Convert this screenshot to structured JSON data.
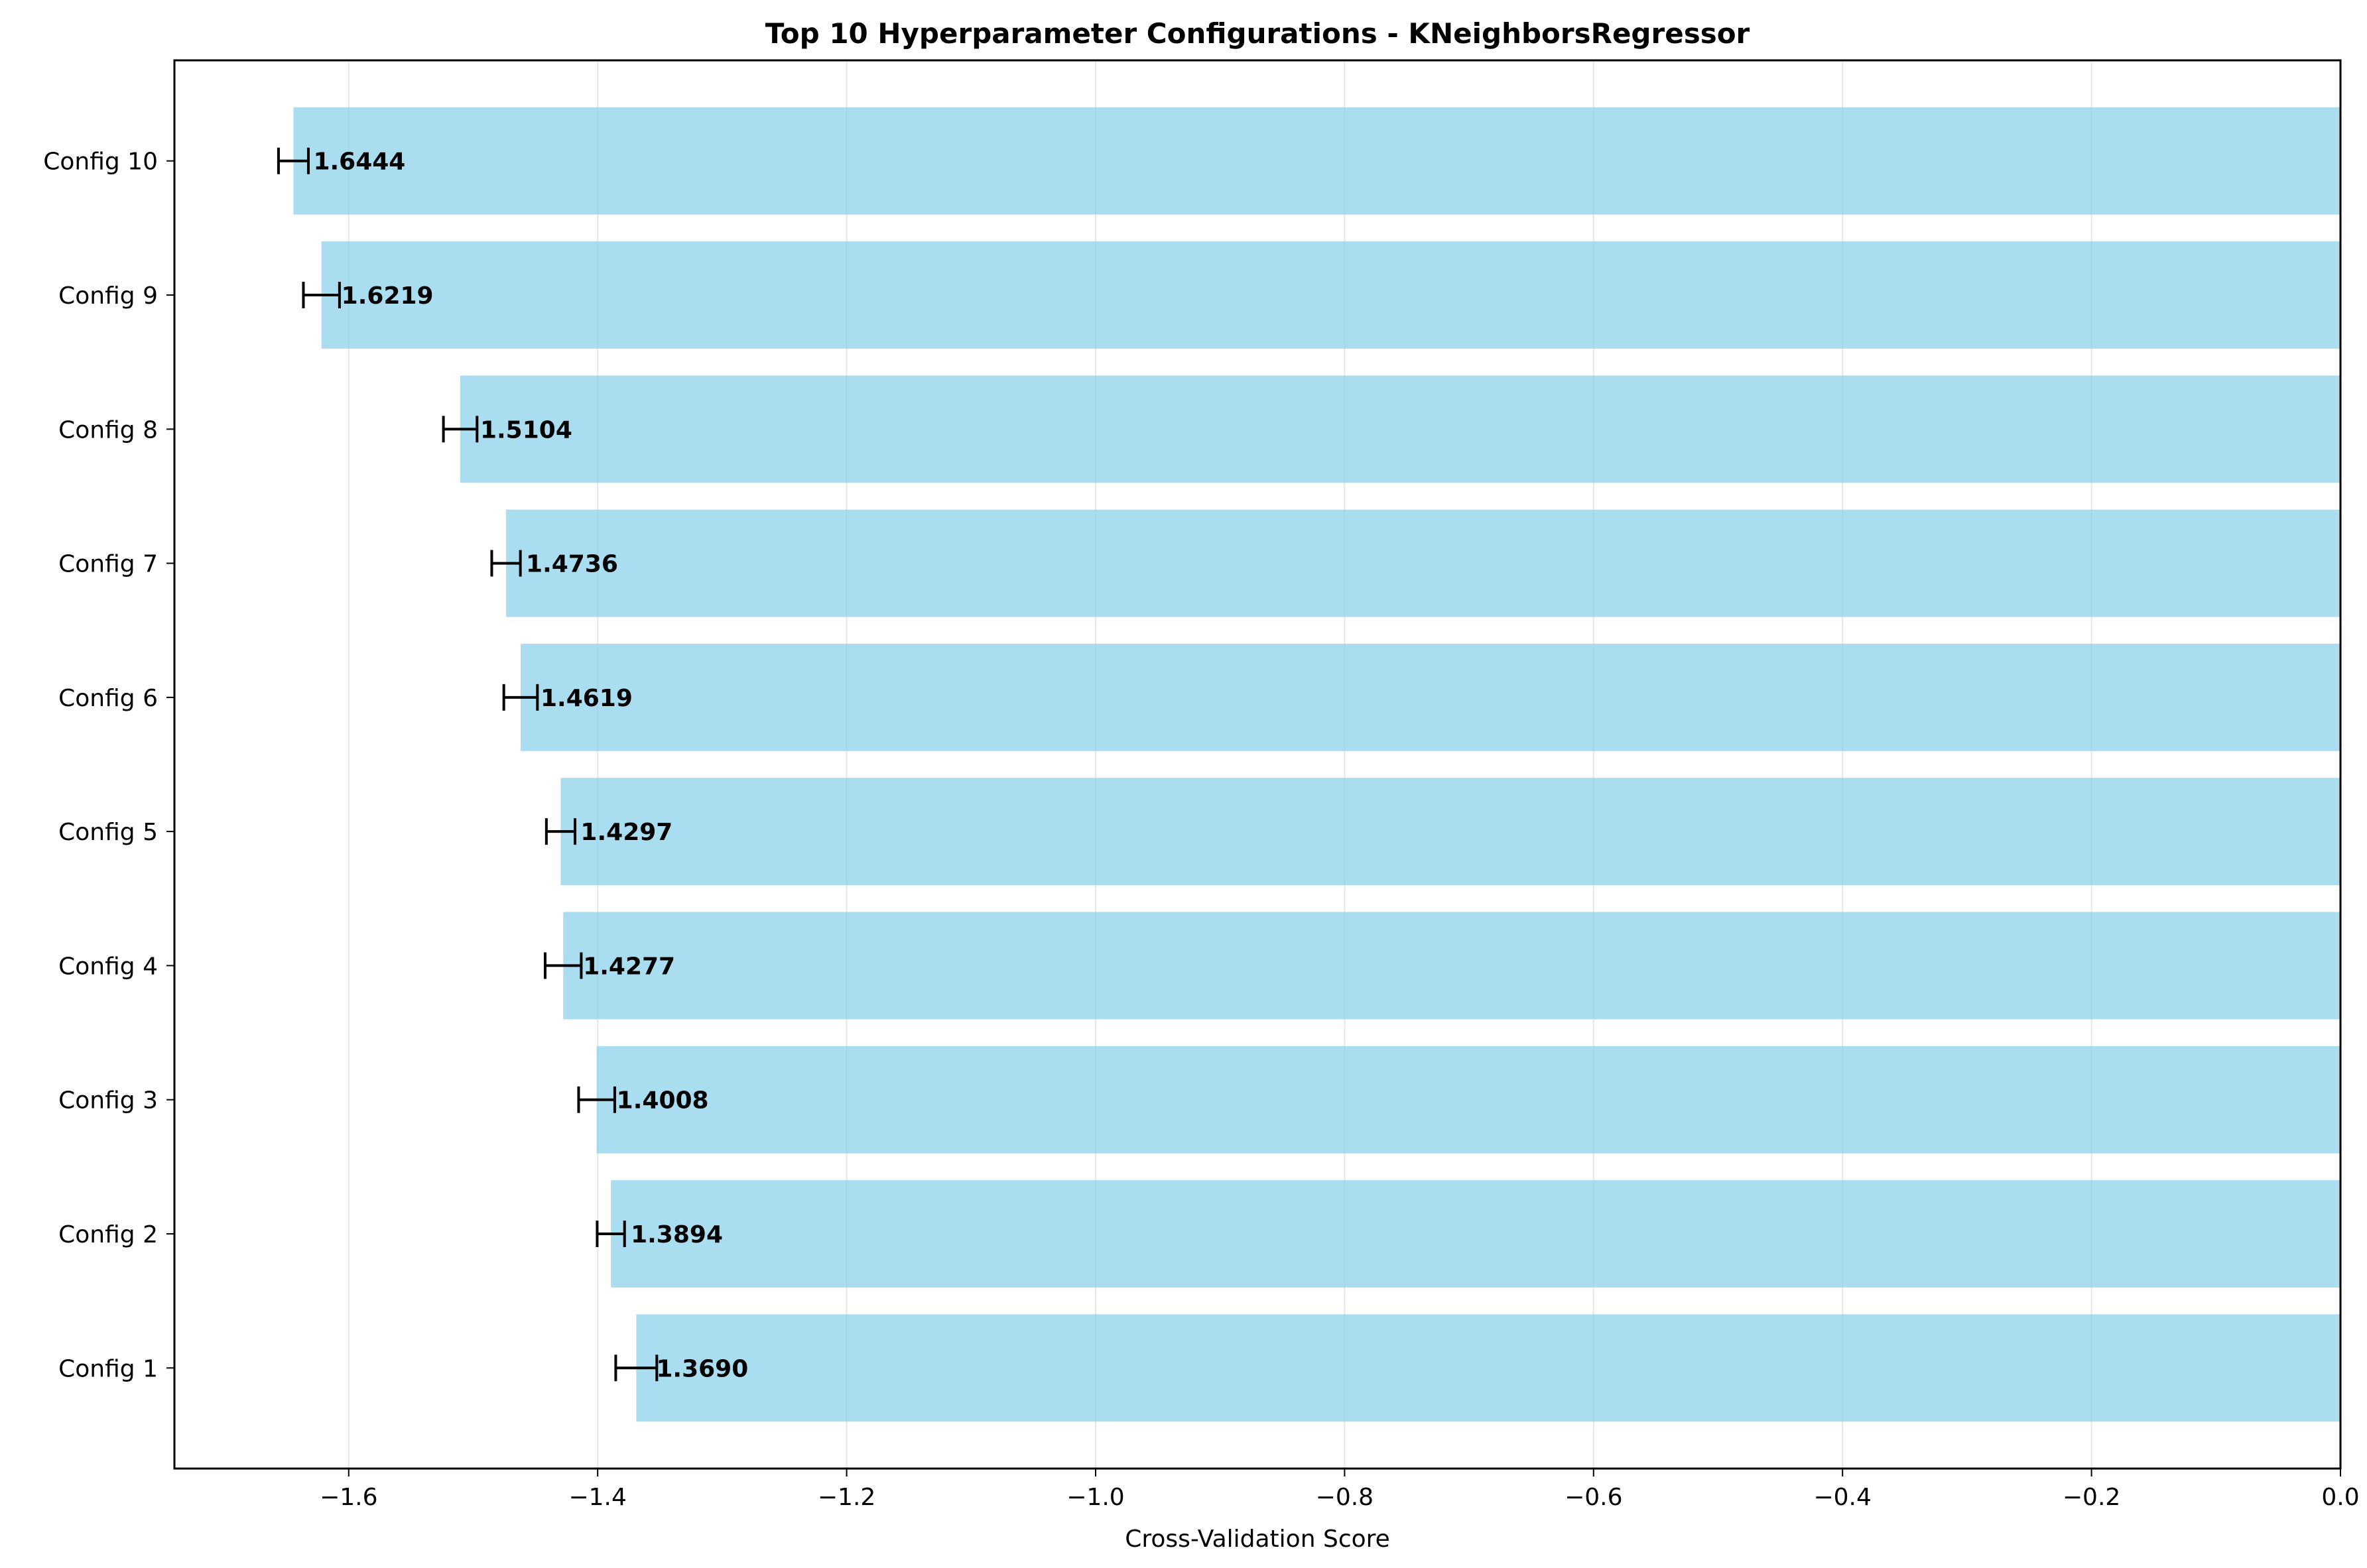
{
  "chart_data": {
    "type": "bar",
    "orientation": "horizontal",
    "title": "Top 10 Hyperparameter Configurations - KNeighborsRegressor",
    "xlabel": "Cross-Validation Score",
    "ylabel": "",
    "xlim": [
      -1.74,
      0.0
    ],
    "x_ticks": [
      -1.6,
      -1.4,
      -1.2,
      -1.0,
      -0.8,
      -0.6,
      -0.4,
      -0.2,
      0.0
    ],
    "x_tick_labels": [
      "−1.6",
      "−1.4",
      "−1.2",
      "−1.0",
      "−0.8",
      "−0.6",
      "−0.4",
      "−0.2",
      "0.0"
    ],
    "grid": "x",
    "bar_color": "#87CEEB",
    "bar_opacity": 0.7,
    "errorbar_color": "#000000",
    "categories": [
      "Config 1",
      "Config 2",
      "Config 3",
      "Config 4",
      "Config 5",
      "Config 6",
      "Config 7",
      "Config 8",
      "Config 9",
      "Config 10"
    ],
    "values": [
      -1.369,
      -1.3894,
      -1.4008,
      -1.4277,
      -1.4297,
      -1.4619,
      -1.4736,
      -1.5104,
      -1.6219,
      -1.6444
    ],
    "errors": [
      0.0165,
      0.011,
      0.0145,
      0.0145,
      0.0115,
      0.0135,
      0.0115,
      0.0135,
      0.0145,
      0.012
    ],
    "data_labels": [
      "1.3690",
      "1.3894",
      "1.4008",
      "1.4277",
      "1.4297",
      "1.4619",
      "1.4736",
      "1.5104",
      "1.6219",
      "1.6444"
    ]
  }
}
